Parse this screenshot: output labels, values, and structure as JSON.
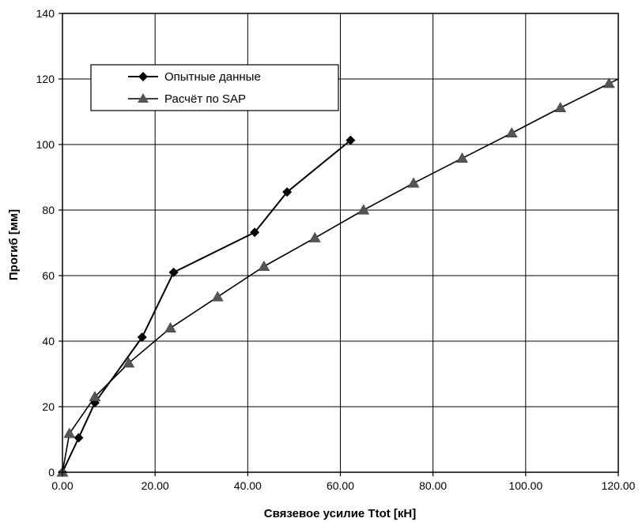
{
  "chart_data": {
    "type": "line",
    "xlabel": "Связевое усилие Ttot [кН]",
    "ylabel": "Прогиб [мм]",
    "xlim": [
      0,
      120
    ],
    "ylim": [
      0,
      140
    ],
    "x_ticks": [
      0,
      20,
      40,
      60,
      80,
      100,
      120
    ],
    "x_tick_labels": [
      "0.00",
      "20.00",
      "40.00",
      "60.00",
      "80.00",
      "100.00",
      "120.00"
    ],
    "y_ticks": [
      0,
      20,
      40,
      60,
      80,
      100,
      120,
      140
    ],
    "y_tick_labels": [
      "0",
      "20",
      "40",
      "60",
      "80",
      "100",
      "120",
      "140"
    ],
    "grid": true,
    "legend_position": "top-left",
    "series": [
      {
        "name": "Опытные данные",
        "marker": "diamond",
        "color": "#000000",
        "x": [
          0,
          3.5,
          7,
          17.2,
          24,
          41.5,
          48.5,
          62.2
        ],
        "y": [
          0,
          10.5,
          21.2,
          41.2,
          61,
          73.2,
          85.5,
          101.3
        ]
      },
      {
        "name": "Расчёт по SAP",
        "marker": "triangle",
        "color": "#000000",
        "x": [
          0,
          1.5,
          7,
          14.3,
          23.3,
          33.5,
          43.5,
          54.5,
          65,
          75.8,
          86.3,
          97,
          107.5,
          118
        ],
        "y": [
          0,
          11.8,
          23,
          33.3,
          44,
          53.5,
          62.8,
          71.5,
          80,
          88.2,
          95.8,
          103.5,
          111.2,
          118.6
        ]
      }
    ]
  }
}
